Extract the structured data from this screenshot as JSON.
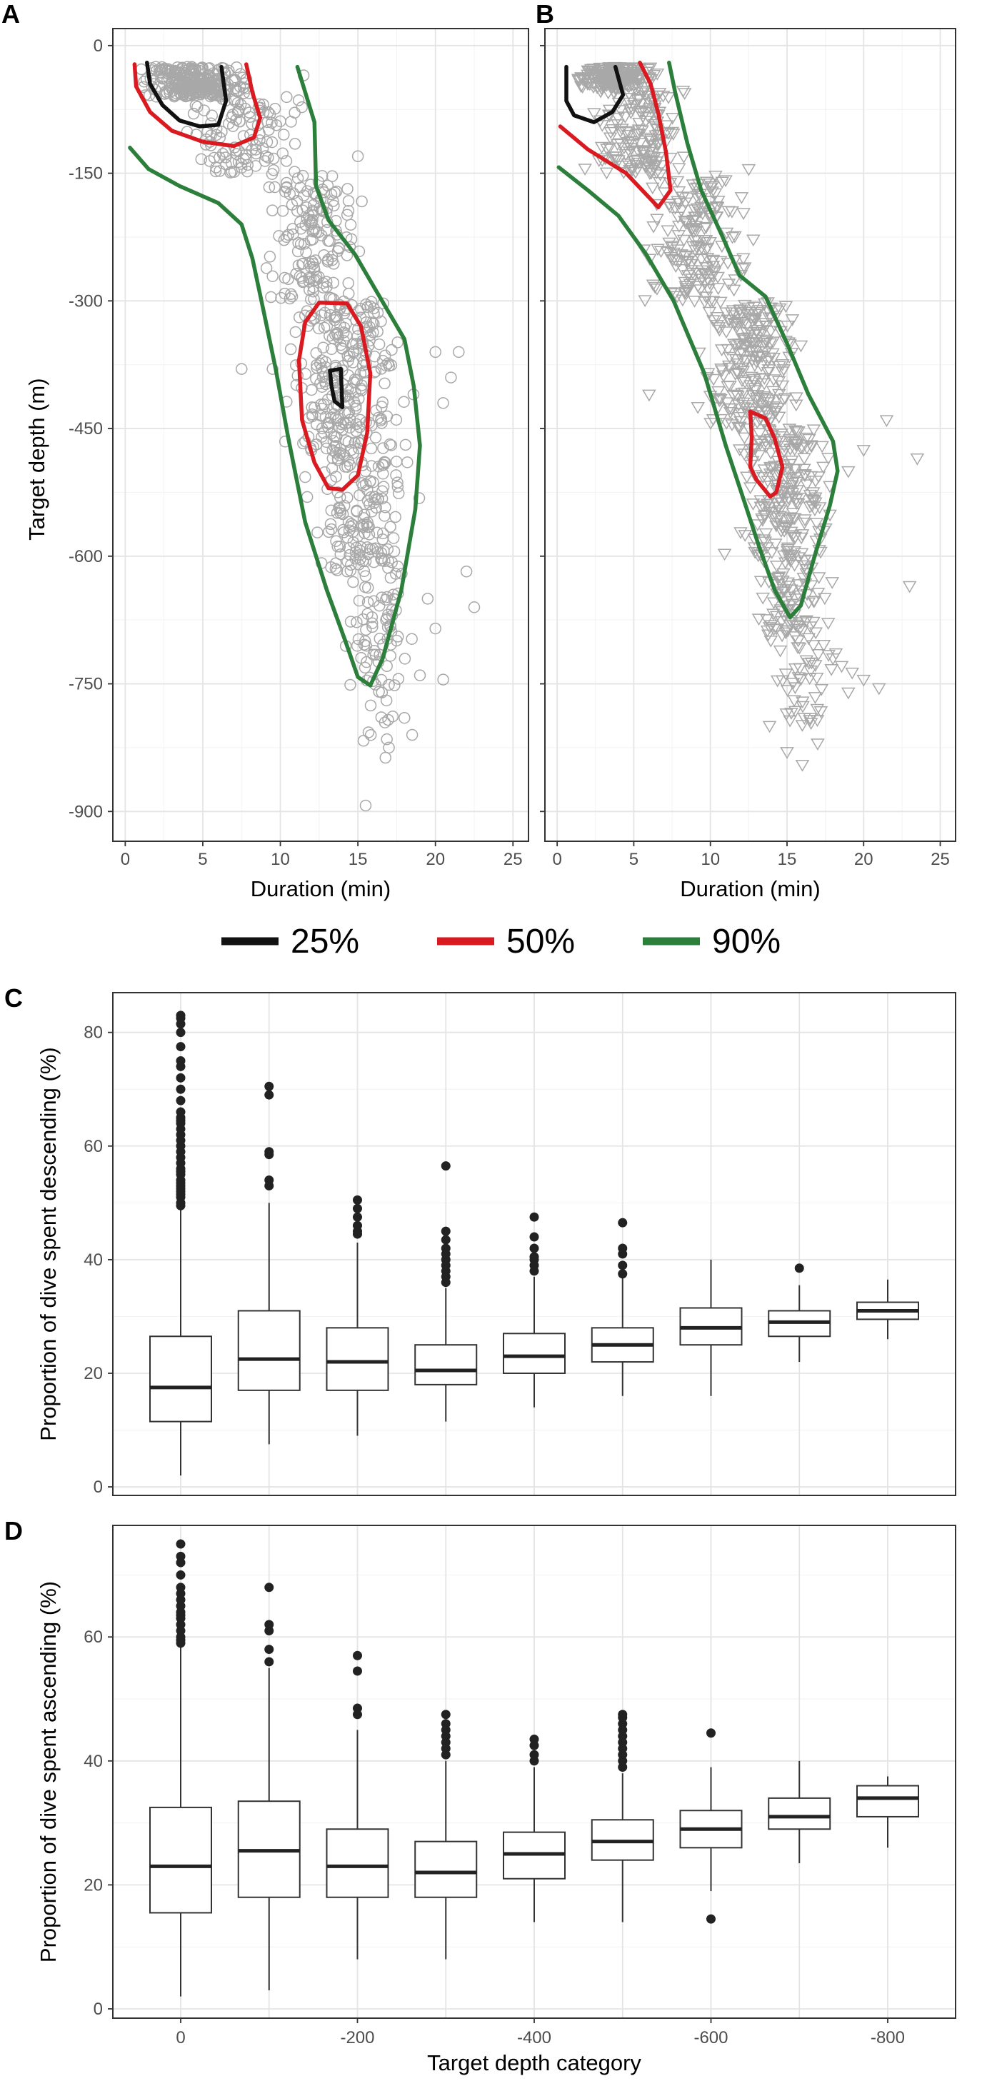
{
  "chart_data": [
    {
      "panel": "A",
      "type": "scatter",
      "marker": "circle",
      "xlabel": "Duration (min)",
      "ylabel": "Target depth (m)",
      "xlim": [
        -0.8,
        26
      ],
      "ylim": [
        -935,
        20
      ],
      "xticks": [
        "0",
        "5",
        "10",
        "15",
        "20",
        "25"
      ],
      "yticks": [
        "0",
        "-150",
        "-300",
        "-450",
        "-600",
        "-750",
        "-900"
      ],
      "scatter_cloud": [
        {
          "d0": -25,
          "d1": -60,
          "x0": 0.5,
          "x1": 8.5,
          "n": 260
        },
        {
          "d0": -60,
          "d1": -150,
          "x0": 3,
          "x1": 12,
          "n": 110
        },
        {
          "d0": -150,
          "d1": -300,
          "x0": 8,
          "x1": 16,
          "n": 150
        },
        {
          "d0": -300,
          "d1": -480,
          "x0": 9.5,
          "x1": 19,
          "n": 260
        },
        {
          "d0": -480,
          "d1": -620,
          "x0": 11,
          "x1": 19.5,
          "n": 150
        },
        {
          "d0": -620,
          "d1": -760,
          "x0": 13.5,
          "x1": 19,
          "n": 70
        },
        {
          "d0": -760,
          "d1": -840,
          "x0": 14.5,
          "x1": 18.5,
          "n": 12
        }
      ],
      "scatter_outliers": [
        [
          22.5,
          -660
        ],
        [
          22,
          -618
        ],
        [
          20.5,
          -745
        ],
        [
          19,
          -740
        ],
        [
          18,
          -790
        ],
        [
          17,
          -825
        ],
        [
          15.5,
          -893
        ],
        [
          19.5,
          -650
        ],
        [
          21,
          -390
        ],
        [
          20.5,
          -420
        ],
        [
          20,
          -360
        ],
        [
          21.5,
          -360
        ],
        [
          7.5,
          -380
        ],
        [
          9.5,
          -380
        ],
        [
          2,
          -60
        ],
        [
          11.5,
          -35
        ],
        [
          15,
          -130
        ],
        [
          18.5,
          -810
        ],
        [
          20,
          -685
        ]
      ],
      "contours": [
        {
          "level": "25%",
          "color": "#111111",
          "points": [
            [
              1.4,
              -20
            ],
            [
              1.6,
              -45
            ],
            [
              2.4,
              -70
            ],
            [
              3.5,
              -88
            ],
            [
              4.8,
              -95
            ],
            [
              6,
              -93
            ],
            [
              6.5,
              -65
            ],
            [
              6.2,
              -25
            ]
          ]
        },
        {
          "level": "25%",
          "color": "#111111",
          "points": [
            [
              13.2,
              -382
            ],
            [
              13.9,
              -380
            ],
            [
              14,
              -425
            ],
            [
              13.5,
              -418
            ],
            [
              13.3,
              -400
            ],
            [
              13.2,
              -382
            ]
          ]
        },
        {
          "level": "50%",
          "color": "#d91a20",
          "points": [
            [
              0.6,
              -22
            ],
            [
              0.7,
              -48
            ],
            [
              1.6,
              -78
            ],
            [
              3,
              -100
            ],
            [
              5,
              -113
            ],
            [
              7,
              -118
            ],
            [
              8.3,
              -108
            ],
            [
              8.7,
              -85
            ],
            [
              8.2,
              -55
            ],
            [
              7.8,
              -22
            ]
          ]
        },
        {
          "level": "50%",
          "color": "#d91a20",
          "points": [
            [
              12.5,
              -302
            ],
            [
              14.3,
              -303
            ],
            [
              15.2,
              -330
            ],
            [
              15.8,
              -385
            ],
            [
              15.6,
              -455
            ],
            [
              15,
              -505
            ],
            [
              14,
              -522
            ],
            [
              13.1,
              -520
            ],
            [
              12.2,
              -490
            ],
            [
              11.4,
              -440
            ],
            [
              11.2,
              -370
            ],
            [
              11.6,
              -325
            ],
            [
              12.5,
              -302
            ]
          ]
        },
        {
          "level": "90%",
          "color": "#2b7f3b",
          "points": [
            [
              0.3,
              -120
            ],
            [
              1.5,
              -145
            ],
            [
              3.5,
              -165
            ],
            [
              6,
              -185
            ],
            [
              7.5,
              -210
            ],
            [
              8.2,
              -250
            ],
            [
              8.9,
              -310
            ],
            [
              9.7,
              -380
            ],
            [
              10.5,
              -460
            ],
            [
              11.6,
              -560
            ],
            [
              13,
              -640
            ],
            [
              14.2,
              -700
            ],
            [
              15,
              -742
            ],
            [
              15.8,
              -752
            ],
            [
              16.6,
              -720
            ],
            [
              17.8,
              -640
            ],
            [
              18.7,
              -545
            ],
            [
              19,
              -470
            ],
            [
              18.6,
              -400
            ],
            [
              18,
              -345
            ],
            [
              16.4,
              -295
            ],
            [
              14.8,
              -245
            ],
            [
              13.1,
              -205
            ],
            [
              12.3,
              -165
            ],
            [
              12.2,
              -90
            ],
            [
              11.1,
              -25
            ]
          ]
        }
      ]
    },
    {
      "panel": "B",
      "type": "scatter",
      "marker": "triangle-down",
      "xlabel": "Duration (min)",
      "ylabel": "",
      "xlim": [
        -0.8,
        26
      ],
      "ylim": [
        -935,
        20
      ],
      "xticks": [
        "0",
        "5",
        "10",
        "15",
        "20",
        "25"
      ],
      "yticks": [
        "0",
        "-150",
        "-300",
        "-450",
        "-600",
        "-750",
        "-900"
      ],
      "scatter_cloud": [
        {
          "d0": -25,
          "d1": -50,
          "x0": 0.5,
          "x1": 7,
          "n": 200
        },
        {
          "d0": -50,
          "d1": -150,
          "x0": 1.5,
          "x1": 9,
          "n": 150
        },
        {
          "d0": -150,
          "d1": -300,
          "x0": 4.5,
          "x1": 14,
          "n": 170
        },
        {
          "d0": -300,
          "d1": -450,
          "x0": 8.5,
          "x1": 17,
          "n": 220
        },
        {
          "d0": -450,
          "d1": -600,
          "x0": 10.5,
          "x1": 19,
          "n": 200
        },
        {
          "d0": -600,
          "d1": -700,
          "x0": 12.5,
          "x1": 18.5,
          "n": 90
        },
        {
          "d0": -700,
          "d1": -800,
          "x0": 13,
          "x1": 20,
          "n": 45
        }
      ],
      "scatter_outliers": [
        [
          19,
          -760
        ],
        [
          20,
          -745
        ],
        [
          21,
          -755
        ],
        [
          23,
          -635
        ],
        [
          23.5,
          -485
        ],
        [
          21.5,
          -440
        ],
        [
          20,
          -475
        ],
        [
          19,
          -500
        ],
        [
          18,
          -720
        ],
        [
          16,
          -845
        ],
        [
          17,
          -820
        ],
        [
          15,
          -830
        ],
        [
          16.5,
          -790
        ],
        [
          10,
          -300
        ],
        [
          6,
          -410
        ],
        [
          12.5,
          -145
        ]
      ],
      "contours": [
        {
          "level": "25%",
          "color": "#111111",
          "points": [
            [
              0.6,
              -25
            ],
            [
              0.6,
              -65
            ],
            [
              1.1,
              -82
            ],
            [
              2.4,
              -90
            ],
            [
              3.6,
              -78
            ],
            [
              4.3,
              -58
            ],
            [
              3.8,
              -25
            ]
          ]
        },
        {
          "level": "50%",
          "color": "#d91a20",
          "points": [
            [
              0.2,
              -95
            ],
            [
              2,
              -122
            ],
            [
              4.5,
              -150
            ],
            [
              6.6,
              -190
            ],
            [
              7.4,
              -170
            ],
            [
              7.1,
              -125
            ],
            [
              6.6,
              -80
            ],
            [
              6.1,
              -45
            ],
            [
              5.4,
              -20
            ]
          ]
        },
        {
          "level": "50%",
          "color": "#d91a20",
          "points": [
            [
              12.6,
              -430
            ],
            [
              13.6,
              -438
            ],
            [
              14.2,
              -462
            ],
            [
              14.7,
              -495
            ],
            [
              14.3,
              -525
            ],
            [
              13.9,
              -530
            ],
            [
              13,
              -510
            ],
            [
              12.6,
              -495
            ],
            [
              12.7,
              -460
            ],
            [
              12.6,
              -430
            ]
          ]
        },
        {
          "level": "90%",
          "color": "#2b7f3b",
          "points": [
            [
              0.1,
              -143
            ],
            [
              2,
              -170
            ],
            [
              4,
              -200
            ],
            [
              5.8,
              -245
            ],
            [
              7.6,
              -300
            ],
            [
              9.6,
              -385
            ],
            [
              11,
              -470
            ],
            [
              12.2,
              -535
            ],
            [
              13.2,
              -590
            ],
            [
              14.2,
              -640
            ],
            [
              15.2,
              -672
            ],
            [
              15.9,
              -658
            ],
            [
              16.8,
              -600
            ],
            [
              17.8,
              -540
            ],
            [
              18.3,
              -500
            ],
            [
              18,
              -465
            ],
            [
              16.4,
              -410
            ],
            [
              15,
              -350
            ],
            [
              13.6,
              -295
            ],
            [
              11.9,
              -270
            ],
            [
              10.8,
              -225
            ],
            [
              9.4,
              -170
            ],
            [
              8.5,
              -115
            ],
            [
              7.7,
              -55
            ],
            [
              7.3,
              -20
            ]
          ]
        }
      ]
    },
    {
      "panel": "C",
      "type": "box",
      "categories": [
        "0",
        "-100",
        "-200",
        "-300",
        "-400",
        "-500",
        "-600",
        "-700",
        "-800"
      ],
      "xticks_shown": [],
      "yticks": [
        "0",
        "20",
        "40",
        "60",
        "80"
      ],
      "ylim": [
        -1.5,
        87
      ],
      "xlabel": "",
      "ylabel": "Proportion of dive spent descending (%)",
      "boxes": [
        {
          "q1": 11.5,
          "median": 17.5,
          "q3": 26.5,
          "lo": 2,
          "hi": 49,
          "outliers": [
            49.5,
            50,
            51,
            51.5,
            52,
            52.5,
            53,
            53.5,
            54,
            55,
            55.5,
            56,
            57,
            58,
            59,
            60,
            61,
            62,
            63,
            64,
            64.5,
            65,
            66,
            68,
            70,
            72,
            74,
            75,
            77.5,
            80,
            81.5,
            82.5,
            83
          ]
        },
        {
          "q1": 17,
          "median": 22.5,
          "q3": 31,
          "lo": 7.5,
          "hi": 50,
          "outliers": [
            53,
            54,
            58.5,
            59,
            69,
            70.5
          ]
        },
        {
          "q1": 17,
          "median": 22,
          "q3": 28,
          "lo": 9,
          "hi": 43,
          "outliers": [
            44.5,
            45,
            46,
            47.5,
            49,
            50.5
          ]
        },
        {
          "q1": 18,
          "median": 20.5,
          "q3": 25,
          "lo": 11.5,
          "hi": 35,
          "outliers": [
            36,
            37,
            38,
            39,
            40,
            41,
            42,
            43.5,
            45,
            56.5
          ]
        },
        {
          "q1": 20,
          "median": 23,
          "q3": 27,
          "lo": 14,
          "hi": 37,
          "outliers": [
            38,
            39,
            40,
            40.5,
            42,
            44,
            47.5
          ]
        },
        {
          "q1": 22,
          "median": 25,
          "q3": 28,
          "lo": 16,
          "hi": 37,
          "outliers": [
            37.5,
            39,
            41,
            42,
            46.5
          ]
        },
        {
          "q1": 25,
          "median": 28,
          "q3": 31.5,
          "lo": 16,
          "hi": 40,
          "outliers": []
        },
        {
          "q1": 26.5,
          "median": 29,
          "q3": 31,
          "lo": 22,
          "hi": 35.5,
          "outliers": [
            38.5
          ]
        },
        {
          "q1": 29.5,
          "median": 31,
          "q3": 32.5,
          "lo": 26,
          "hi": 36.5,
          "outliers": []
        }
      ]
    },
    {
      "panel": "D",
      "type": "box",
      "categories": [
        "0",
        "-100",
        "-200",
        "-300",
        "-400",
        "-500",
        "-600",
        "-700",
        "-800"
      ],
      "xticks_shown": [
        "0",
        "-200",
        "-400",
        "-600",
        "-800"
      ],
      "yticks": [
        "0",
        "20",
        "40",
        "60"
      ],
      "ylim": [
        -1.5,
        78
      ],
      "xlabel": "Target depth category",
      "ylabel": "Proportion of dive spent ascending (%)",
      "boxes": [
        {
          "q1": 15.5,
          "median": 23,
          "q3": 32.5,
          "lo": 2,
          "hi": 58.5,
          "outliers": [
            59,
            59.5,
            60,
            61,
            62,
            63,
            63.5,
            64,
            65,
            66,
            67,
            68,
            70,
            72,
            73,
            75
          ]
        },
        {
          "q1": 18,
          "median": 25.5,
          "q3": 33.5,
          "lo": 3,
          "hi": 55,
          "outliers": [
            56,
            58,
            61,
            62,
            68
          ]
        },
        {
          "q1": 18,
          "median": 23,
          "q3": 29,
          "lo": 8,
          "hi": 45,
          "outliers": [
            47.5,
            48.5,
            54.5,
            57
          ]
        },
        {
          "q1": 18,
          "median": 22,
          "q3": 27,
          "lo": 8,
          "hi": 40,
          "outliers": [
            41,
            42,
            43,
            44,
            45,
            46,
            47.5
          ]
        },
        {
          "q1": 21,
          "median": 25,
          "q3": 28.5,
          "lo": 14,
          "hi": 39,
          "outliers": [
            40,
            41,
            42.5,
            43.5
          ]
        },
        {
          "q1": 24,
          "median": 27,
          "q3": 30.5,
          "lo": 14,
          "hi": 38,
          "outliers": [
            39,
            40,
            41,
            42,
            43,
            44,
            45,
            46,
            47,
            47.5
          ]
        },
        {
          "q1": 26,
          "median": 29,
          "q3": 32,
          "lo": 19,
          "hi": 39,
          "outliers": [
            14.5,
            44.5
          ]
        },
        {
          "q1": 29,
          "median": 31,
          "q3": 34,
          "lo": 23.5,
          "hi": 40,
          "outliers": []
        },
        {
          "q1": 31,
          "median": 34,
          "q3": 36,
          "lo": 26,
          "hi": 37.5,
          "outliers": []
        }
      ]
    }
  ],
  "legend": [
    {
      "label": "25%",
      "color": "#111111"
    },
    {
      "label": "50%",
      "color": "#d91a20"
    },
    {
      "label": "90%",
      "color": "#2b7f3b"
    }
  ]
}
